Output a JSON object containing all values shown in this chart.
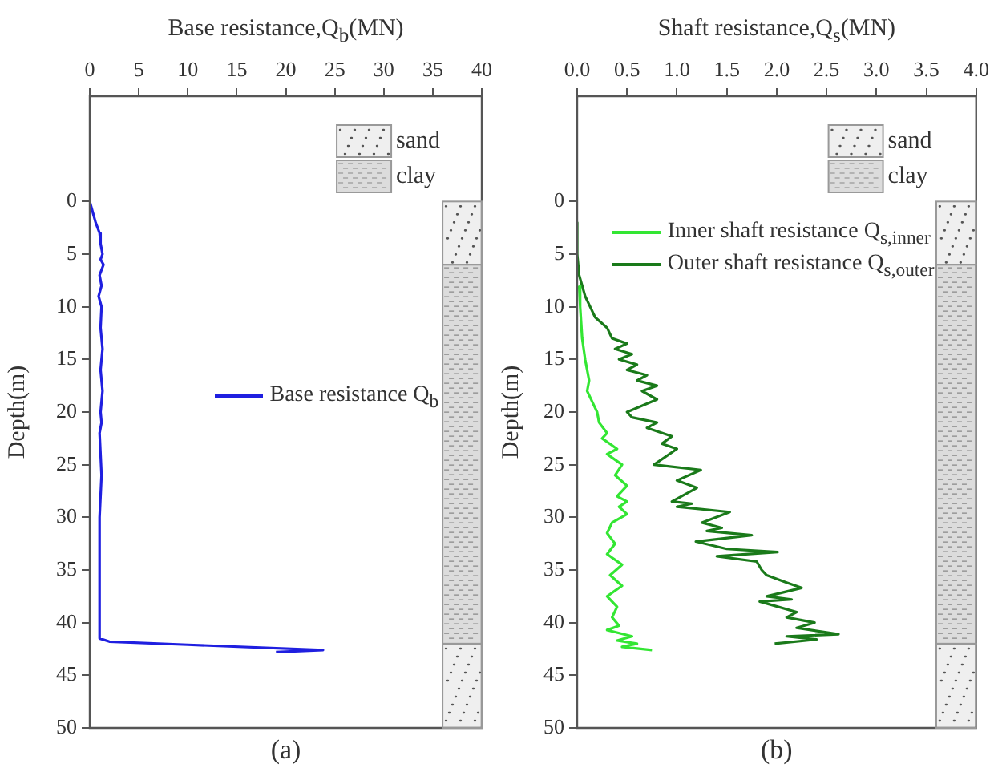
{
  "chart_data": [
    {
      "type": "line",
      "xlabel": "Base resistance,Q$_{b}$(MN)",
      "ylabel": "Depth(m)",
      "xlim": [
        0,
        40
      ],
      "xticks": [
        0,
        5,
        10,
        15,
        20,
        25,
        30,
        35,
        40
      ],
      "ylim": [
        50,
        -10
      ],
      "yticks": [
        0,
        5,
        10,
        15,
        20,
        25,
        30,
        35,
        40,
        45,
        50
      ],
      "legend": "right",
      "annotations": [
        "(a)"
      ],
      "bands": [
        {
          "axis": "y",
          "from": 0,
          "to": 6,
          "label": "sand",
          "color": "#efefef"
        },
        {
          "axis": "y",
          "from": 6,
          "to": 42,
          "label": "clay",
          "color": "#dcdcdc"
        },
        {
          "axis": "y",
          "from": 42,
          "to": 50,
          "label": null,
          "color": "#efefef"
        }
      ],
      "series": [
        {
          "name": "Base resistance Q$_{b}$",
          "color": "#1f1fe0",
          "x": [
            0,
            0.3,
            0.6,
            1.0,
            1.1,
            1.3,
            1.1,
            1.4,
            1.0,
            1.2,
            0.9,
            1.2,
            1.1,
            1.3,
            1.1,
            1.3,
            1.1,
            1.2,
            1.0,
            1.2,
            1.0,
            1.0,
            2,
            10,
            23.8,
            19
          ],
          "values": [
            0,
            1,
            2,
            3,
            4,
            5,
            5.5,
            6,
            7,
            8,
            9,
            10,
            12,
            14,
            16,
            18,
            20,
            21,
            22,
            26,
            30,
            41.5,
            41.8,
            42.1,
            42.6,
            42.8
          ]
        }
      ]
    },
    {
      "type": "line",
      "xlabel": "Shaft resistance,Q$_{s}$(MN)",
      "ylabel": "Depth(m)",
      "xlim": [
        0,
        4
      ],
      "xticks": [
        {
          "value": 0,
          "label": "0.0"
        },
        {
          "value": 0.5,
          "label": "0.5"
        },
        {
          "value": 1,
          "label": "1.0"
        },
        {
          "value": 1.5,
          "label": "1.5"
        },
        {
          "value": 2,
          "label": "2.0"
        },
        {
          "value": 2.5,
          "label": "2.5"
        },
        {
          "value": 3,
          "label": "3.0"
        },
        {
          "value": 3.5,
          "label": "3.5"
        },
        {
          "value": 4,
          "label": "4.0"
        }
      ],
      "ylim": [
        50,
        -10
      ],
      "yticks": [
        0,
        5,
        10,
        15,
        20,
        25,
        30,
        35,
        40,
        45,
        50
      ],
      "legend": "top left",
      "annotations": [
        "(b)"
      ],
      "bands": [
        {
          "axis": "y",
          "from": 0,
          "to": 6,
          "label": "sand",
          "color": "#efefef"
        },
        {
          "axis": "y",
          "from": 6,
          "to": 42,
          "label": "clay",
          "color": "#dcdcdc"
        },
        {
          "axis": "y",
          "from": 42,
          "to": 50,
          "label": null,
          "color": "#efefef"
        }
      ],
      "series": [
        {
          "name": "Inner shaft resistance Q$_{s,inner}$",
          "color": "#33e633",
          "x": [
            0.02,
            0.03,
            0.05,
            0.08,
            0.12,
            0.1,
            0.15,
            0.2,
            0.22,
            0.3,
            0.25,
            0.4,
            0.3,
            0.45,
            0.38,
            0.5,
            0.4,
            0.5,
            0.42,
            0.5,
            0.35,
            0.3,
            0.38,
            0.3,
            0.45,
            0.33,
            0.45,
            0.3,
            0.4,
            0.35,
            0.42,
            0.3,
            0.55,
            0.4,
            0.6,
            0.45,
            0.75
          ],
          "values": [
            8,
            10,
            13,
            15,
            17,
            18,
            19,
            20,
            21,
            22,
            22.5,
            23.5,
            24,
            25,
            26,
            27,
            28,
            28.5,
            29,
            29.7,
            30.5,
            31.5,
            32.5,
            33.5,
            34.5,
            35.5,
            36.5,
            37.5,
            38.5,
            39.5,
            40.3,
            40.7,
            41.3,
            41.7,
            42,
            42.3,
            42.6
          ]
        },
        {
          "name": "Outer shaft resistance Q$_{s,outer}$",
          "color": "#1a7a1a",
          "x": [
            0,
            0,
            0.02,
            0.08,
            0.13,
            0.18,
            0.3,
            0.35,
            0.5,
            0.38,
            0.55,
            0.42,
            0.6,
            0.5,
            0.7,
            0.6,
            0.8,
            0.65,
            0.8,
            0.5,
            0.55,
            0.8,
            0.7,
            0.95,
            0.85,
            1.0,
            0.77,
            1.24,
            1.0,
            1.2,
            0.95,
            1.15,
            1.0,
            1.53,
            1.25,
            1.45,
            1.3,
            1.75,
            1.19,
            1.5,
            2.01,
            1.4,
            1.8,
            1.85,
            1.9,
            2.1,
            2.25,
            1.9,
            2.15,
            1.83,
            2.2,
            2.1,
            2.38,
            2.2,
            2.62,
            2.1,
            2.4,
            1.98
          ],
          "values": [
            2,
            5,
            7,
            9,
            10,
            11,
            12,
            13,
            13.5,
            14,
            14.5,
            15,
            15.5,
            16,
            16.5,
            17,
            17.5,
            18,
            18.8,
            20,
            20.5,
            21,
            21.5,
            22.3,
            23,
            23.5,
            25,
            25.5,
            26.5,
            27.2,
            28.5,
            28.7,
            29,
            29.5,
            30.5,
            31,
            31.3,
            31.7,
            32.3,
            33,
            33.3,
            33.7,
            34.2,
            35,
            35.5,
            36.2,
            36.7,
            37.5,
            37.8,
            38,
            39,
            39.5,
            40,
            40.5,
            41.1,
            41.3,
            41.6,
            42
          ]
        }
      ]
    }
  ]
}
